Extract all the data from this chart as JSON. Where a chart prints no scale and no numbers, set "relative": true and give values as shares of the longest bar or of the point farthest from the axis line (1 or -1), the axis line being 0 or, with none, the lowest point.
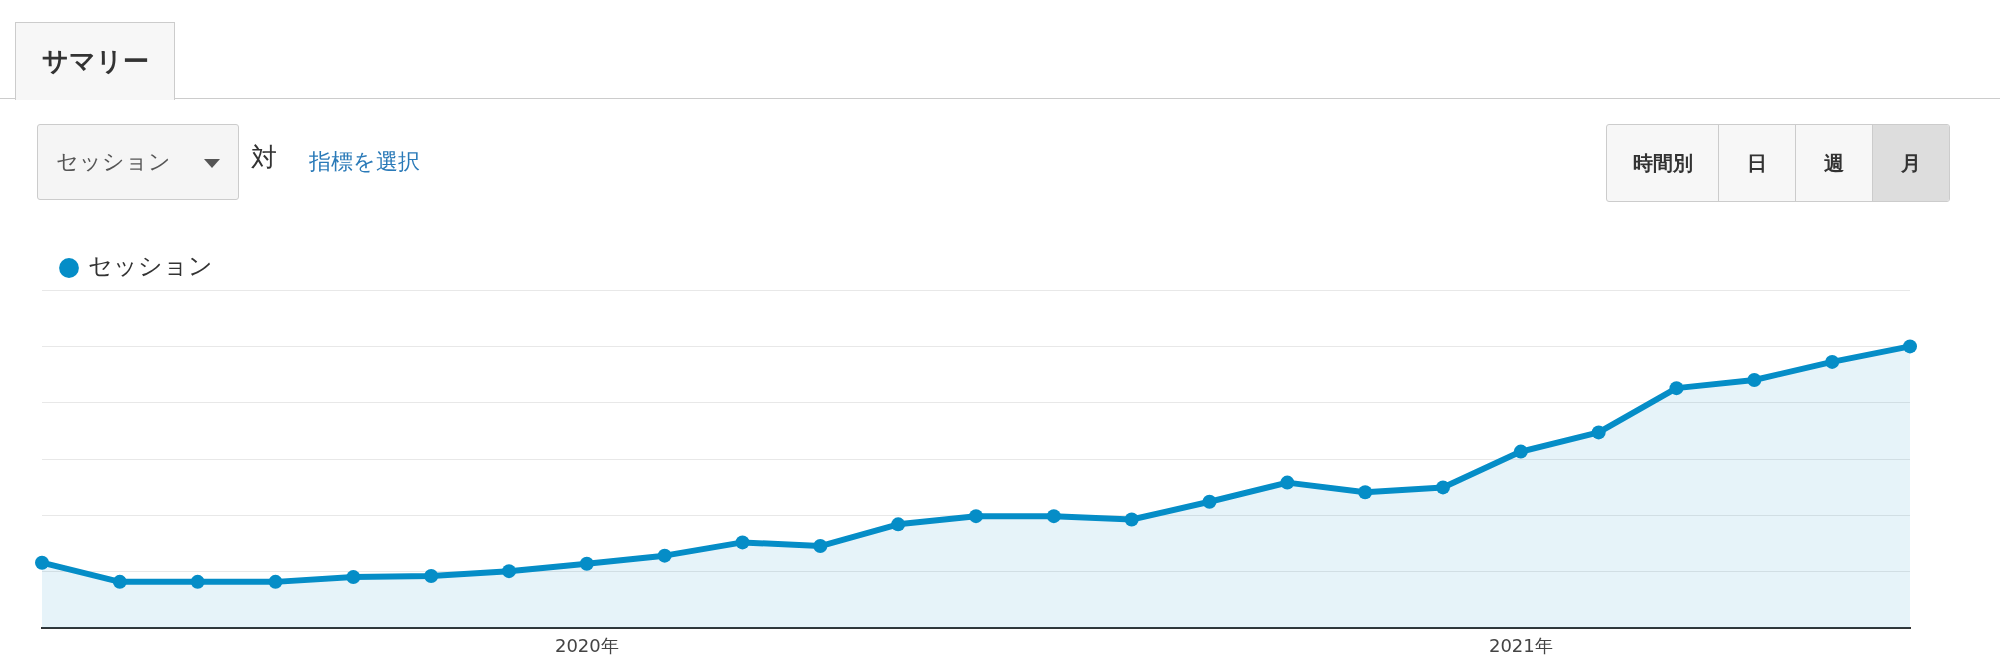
{
  "chart_data": {
    "type": "area",
    "relative": true,
    "grid": "y",
    "legend": "top left",
    "marker": "circle",
    "line_style": "solid",
    "categories": [
      null,
      null,
      null,
      null,
      null,
      null,
      null,
      "2020年",
      null,
      null,
      null,
      null,
      null,
      null,
      null,
      null,
      null,
      null,
      null,
      "2021年",
      null,
      null,
      null,
      null,
      null
    ],
    "series": [
      {
        "name": "セッション",
        "color": "#058dc7",
        "values": [
          0.233,
          0.165,
          0.165,
          0.165,
          0.182,
          0.186,
          0.203,
          0.229,
          0.258,
          0.305,
          0.292,
          0.369,
          0.398,
          0.398,
          0.386,
          0.449,
          0.517,
          0.483,
          0.5,
          0.627,
          0.695,
          0.852,
          0.881,
          0.945,
          1
        ]
      }
    ],
    "annotations": [
      "サマリー",
      "セッション",
      "対",
      "指標を選択",
      "時間別",
      "日",
      "週",
      "月"
    ]
  }
}
